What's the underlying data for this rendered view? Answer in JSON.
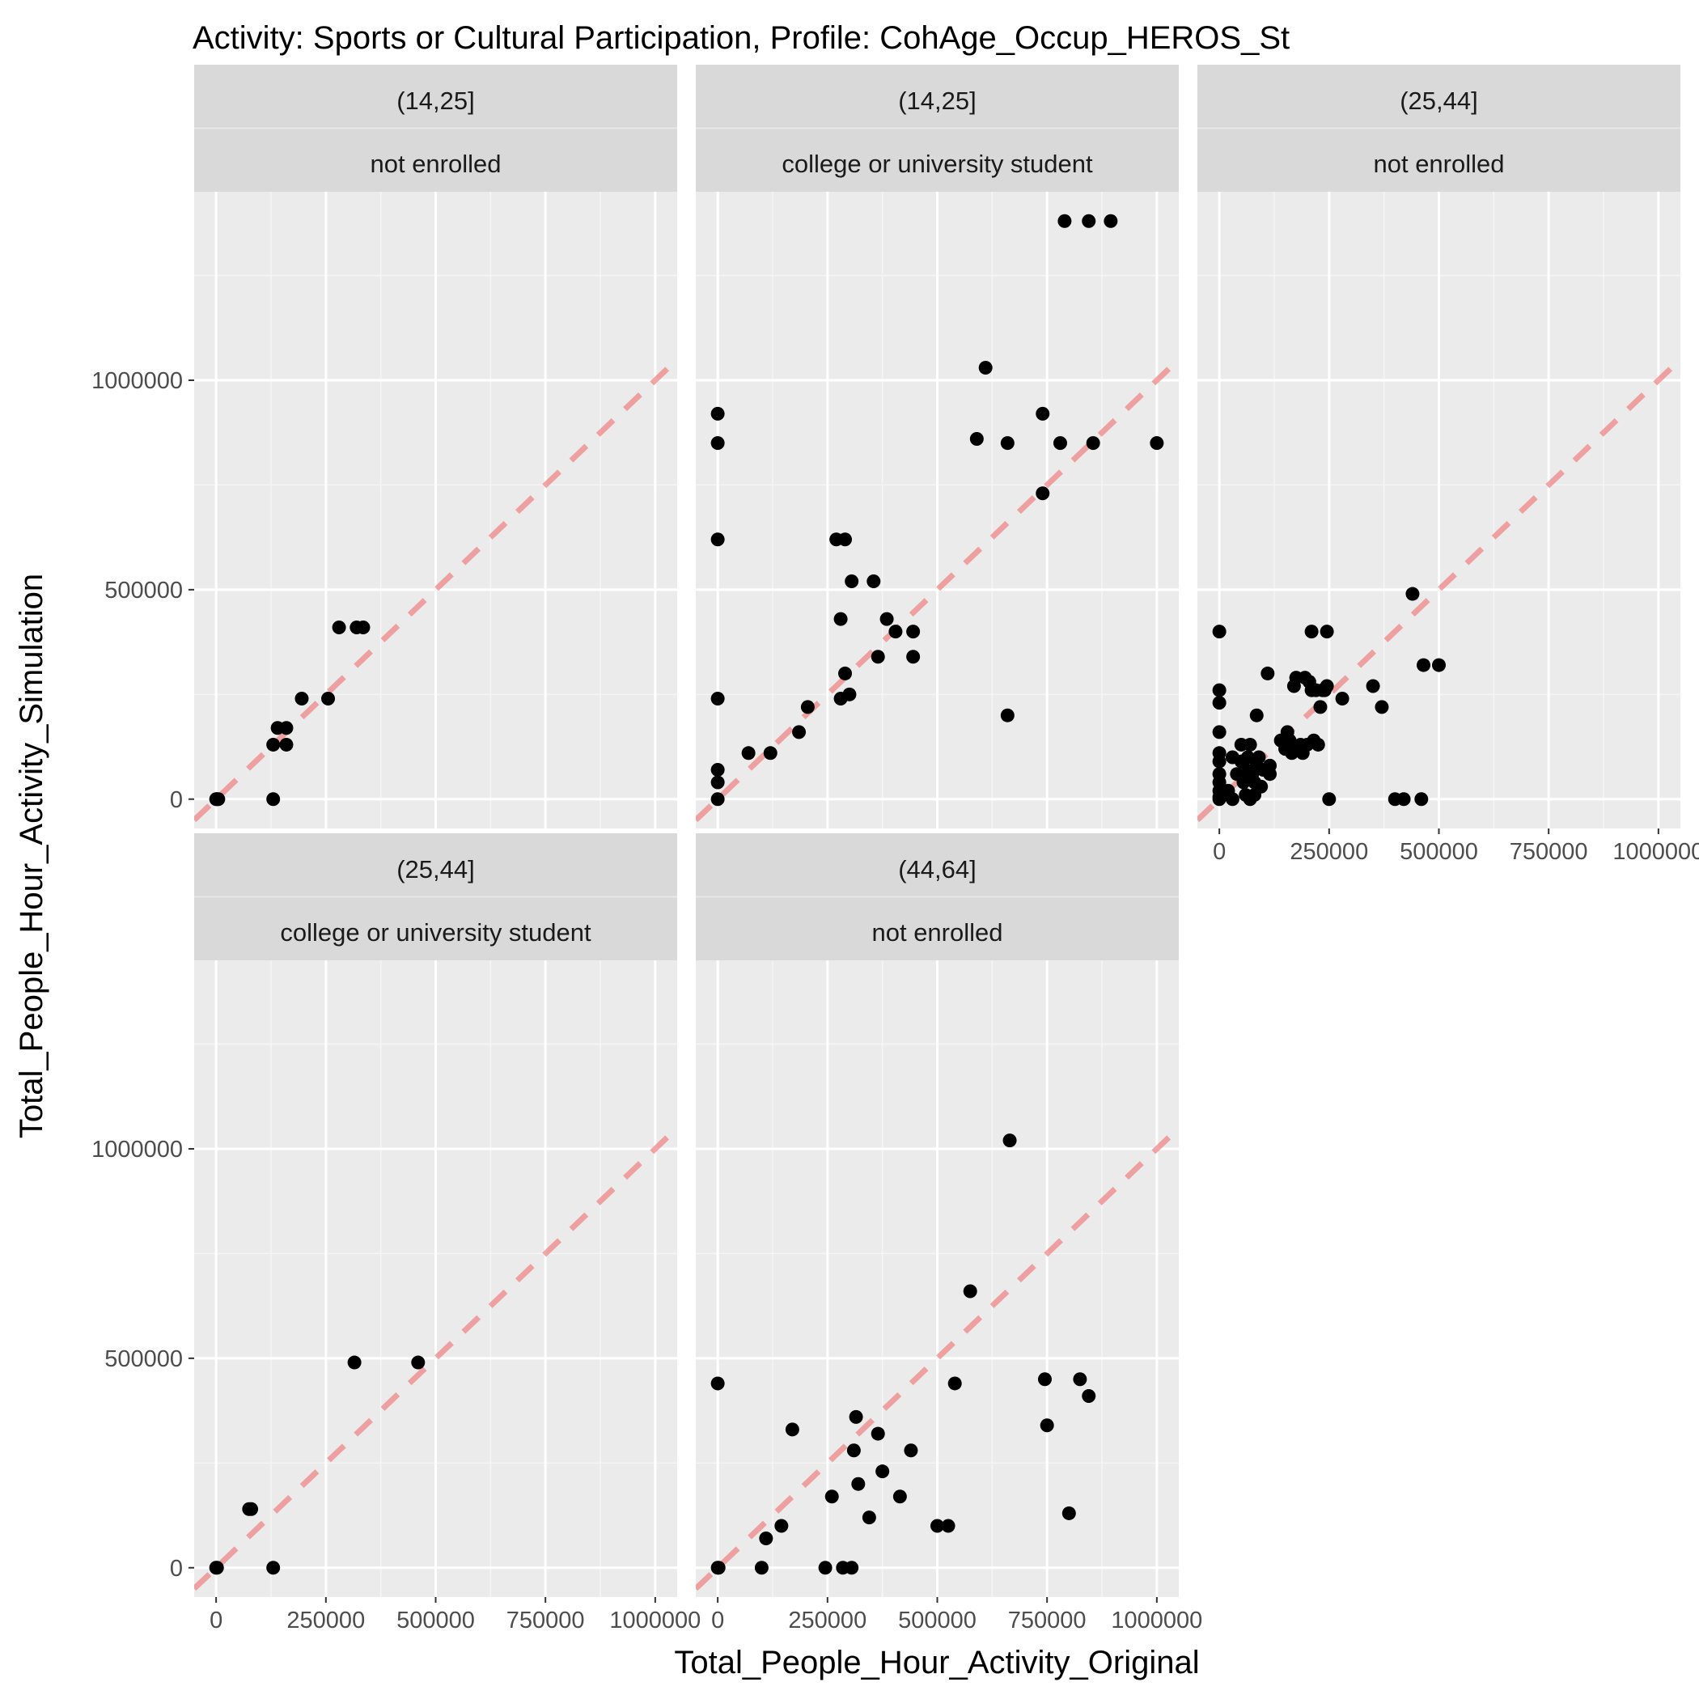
{
  "chart_data": {
    "type": "scatter",
    "title": "Activity: Sports or Cultural Participation, Profile: CohAge_Occup_HEROS_St",
    "xlabel": "Total_People_Hour_Activity_Original",
    "ylabel": "Total_People_Hour_Activity_Simulation",
    "xlim": [
      -50000,
      1050000
    ],
    "ylim": [
      -70000,
      1450000
    ],
    "x_ticks": [
      "0",
      "250000",
      "500000",
      "750000",
      "1000000"
    ],
    "y_ticks": [
      "0",
      "500000",
      "1000000"
    ],
    "grid": true,
    "reference_line": {
      "slope": 1,
      "intercept": 0,
      "style": "dashed",
      "color": "#f08080"
    },
    "point_color": "#000000",
    "panels": [
      {
        "strip_top": "(14,25]",
        "strip_bottom": "not enrolled",
        "points": [
          [
            0,
            0
          ],
          [
            2000,
            0
          ],
          [
            5000,
            0
          ],
          [
            130000,
            0
          ],
          [
            130000,
            130000
          ],
          [
            140000,
            170000
          ],
          [
            160000,
            170000
          ],
          [
            160000,
            130000
          ],
          [
            195000,
            240000
          ],
          [
            255000,
            240000
          ],
          [
            280000,
            410000
          ],
          [
            320000,
            410000
          ],
          [
            335000,
            410000
          ]
        ]
      },
      {
        "strip_top": "(14,25]",
        "strip_bottom": "college or university student",
        "points": [
          [
            0,
            920000
          ],
          [
            0,
            850000
          ],
          [
            0,
            620000
          ],
          [
            0,
            240000
          ],
          [
            0,
            70000
          ],
          [
            0,
            40000
          ],
          [
            0,
            0
          ],
          [
            70000,
            110000
          ],
          [
            120000,
            110000
          ],
          [
            185000,
            160000
          ],
          [
            205000,
            220000
          ],
          [
            270000,
            620000
          ],
          [
            290000,
            620000
          ],
          [
            280000,
            240000
          ],
          [
            290000,
            300000
          ],
          [
            300000,
            250000
          ],
          [
            305000,
            520000
          ],
          [
            355000,
            520000
          ],
          [
            280000,
            430000
          ],
          [
            365000,
            340000
          ],
          [
            385000,
            430000
          ],
          [
            405000,
            400000
          ],
          [
            445000,
            400000
          ],
          [
            445000,
            340000
          ],
          [
            590000,
            860000
          ],
          [
            610000,
            1030000
          ],
          [
            660000,
            850000
          ],
          [
            660000,
            200000
          ],
          [
            740000,
            920000
          ],
          [
            740000,
            730000
          ],
          [
            780000,
            850000
          ],
          [
            790000,
            1380000
          ],
          [
            845000,
            1380000
          ],
          [
            855000,
            850000
          ],
          [
            895000,
            1380000
          ],
          [
            1000000,
            850000
          ]
        ]
      },
      {
        "strip_top": "(25,44]",
        "strip_bottom": "not enrolled",
        "points": [
          [
            0,
            400000
          ],
          [
            0,
            260000
          ],
          [
            0,
            230000
          ],
          [
            0,
            160000
          ],
          [
            0,
            110000
          ],
          [
            0,
            90000
          ],
          [
            0,
            60000
          ],
          [
            0,
            40000
          ],
          [
            0,
            20000
          ],
          [
            0,
            5000
          ],
          [
            0,
            0
          ],
          [
            20000,
            20000
          ],
          [
            30000,
            0
          ],
          [
            30000,
            100000
          ],
          [
            40000,
            60000
          ],
          [
            50000,
            130000
          ],
          [
            50000,
            90000
          ],
          [
            55000,
            40000
          ],
          [
            60000,
            10000
          ],
          [
            60000,
            70000
          ],
          [
            65000,
            100000
          ],
          [
            70000,
            130000
          ],
          [
            70000,
            0
          ],
          [
            75000,
            60000
          ],
          [
            80000,
            40000
          ],
          [
            80000,
            10000
          ],
          [
            85000,
            80000
          ],
          [
            85000,
            200000
          ],
          [
            90000,
            100000
          ],
          [
            95000,
            30000
          ],
          [
            100000,
            70000
          ],
          [
            110000,
            300000
          ],
          [
            115000,
            80000
          ],
          [
            115000,
            60000
          ],
          [
            140000,
            140000
          ],
          [
            150000,
            120000
          ],
          [
            155000,
            160000
          ],
          [
            160000,
            140000
          ],
          [
            165000,
            110000
          ],
          [
            170000,
            270000
          ],
          [
            175000,
            290000
          ],
          [
            175000,
            120000
          ],
          [
            185000,
            130000
          ],
          [
            190000,
            110000
          ],
          [
            195000,
            290000
          ],
          [
            200000,
            130000
          ],
          [
            205000,
            280000
          ],
          [
            210000,
            260000
          ],
          [
            210000,
            400000
          ],
          [
            215000,
            140000
          ],
          [
            220000,
            260000
          ],
          [
            225000,
            130000
          ],
          [
            230000,
            220000
          ],
          [
            235000,
            260000
          ],
          [
            240000,
            260000
          ],
          [
            245000,
            270000
          ],
          [
            245000,
            400000
          ],
          [
            250000,
            0
          ],
          [
            280000,
            240000
          ],
          [
            350000,
            270000
          ],
          [
            370000,
            220000
          ],
          [
            400000,
            0
          ],
          [
            420000,
            0
          ],
          [
            440000,
            490000
          ],
          [
            460000,
            0
          ],
          [
            465000,
            320000
          ],
          [
            500000,
            320000
          ]
        ]
      },
      {
        "strip_top": "(25,44]",
        "strip_bottom": "college or university student",
        "points": [
          [
            0,
            0
          ],
          [
            2000,
            0
          ],
          [
            75000,
            140000
          ],
          [
            80000,
            140000
          ],
          [
            130000,
            0
          ],
          [
            315000,
            490000
          ],
          [
            460000,
            490000
          ]
        ]
      },
      {
        "strip_top": "(44,64]",
        "strip_bottom": "not enrolled",
        "points": [
          [
            0,
            440000
          ],
          [
            0,
            0
          ],
          [
            2000,
            0
          ],
          [
            100000,
            0
          ],
          [
            110000,
            70000
          ],
          [
            145000,
            100000
          ],
          [
            170000,
            330000
          ],
          [
            245000,
            0
          ],
          [
            260000,
            170000
          ],
          [
            285000,
            0
          ],
          [
            305000,
            0
          ],
          [
            310000,
            280000
          ],
          [
            315000,
            360000
          ],
          [
            320000,
            200000
          ],
          [
            345000,
            120000
          ],
          [
            365000,
            320000
          ],
          [
            375000,
            230000
          ],
          [
            415000,
            170000
          ],
          [
            440000,
            280000
          ],
          [
            500000,
            100000
          ],
          [
            525000,
            100000
          ],
          [
            540000,
            440000
          ],
          [
            575000,
            660000
          ],
          [
            665000,
            1020000
          ],
          [
            745000,
            450000
          ],
          [
            750000,
            340000
          ],
          [
            800000,
            130000
          ],
          [
            825000,
            450000
          ],
          [
            845000,
            410000
          ]
        ]
      }
    ]
  }
}
